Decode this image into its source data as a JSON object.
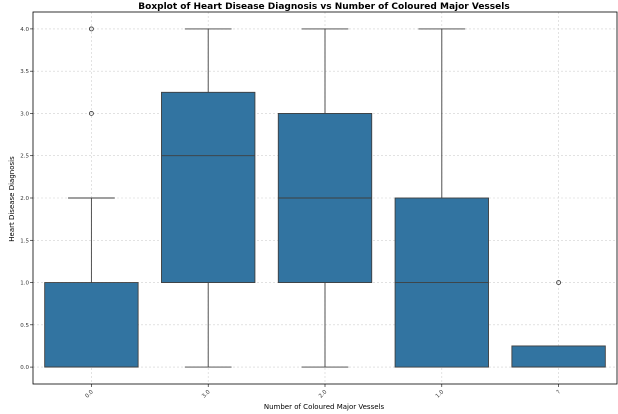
{
  "chart_data": {
    "type": "box",
    "title": "Boxplot of Heart Disease Diagnosis vs Number of Coloured Major Vessels",
    "xlabel": "Number of Coloured Major Vessels",
    "ylabel": "Heart Disease Diagnosis",
    "ylim": [
      -0.2,
      4.2
    ],
    "yticks": [
      "0.0",
      "0.5",
      "1.0",
      "1.5",
      "2.0",
      "2.5",
      "3.0",
      "3.5",
      "4.0"
    ],
    "grid": true,
    "box_color": "#3274a1",
    "categories": [
      "0.0",
      "3.0",
      "2.0",
      "1.0",
      "?"
    ],
    "boxes": [
      {
        "category": "0.0",
        "min": 0,
        "q1": 0,
        "median": 0,
        "q3": 1,
        "max": 2,
        "outliers": [
          3,
          4
        ]
      },
      {
        "category": "3.0",
        "min": 0,
        "q1": 1,
        "median": 2.5,
        "q3": 3.25,
        "max": 4,
        "outliers": []
      },
      {
        "category": "2.0",
        "min": 0,
        "q1": 1,
        "median": 2,
        "q3": 3,
        "max": 4,
        "outliers": []
      },
      {
        "category": "1.0",
        "min": 0,
        "q1": 0,
        "median": 1,
        "q3": 2,
        "max": 4,
        "outliers": []
      },
      {
        "category": "?",
        "min": 0,
        "q1": 0,
        "median": 0,
        "q3": 0.25,
        "max": 0.25,
        "outliers": [
          1
        ]
      }
    ]
  }
}
